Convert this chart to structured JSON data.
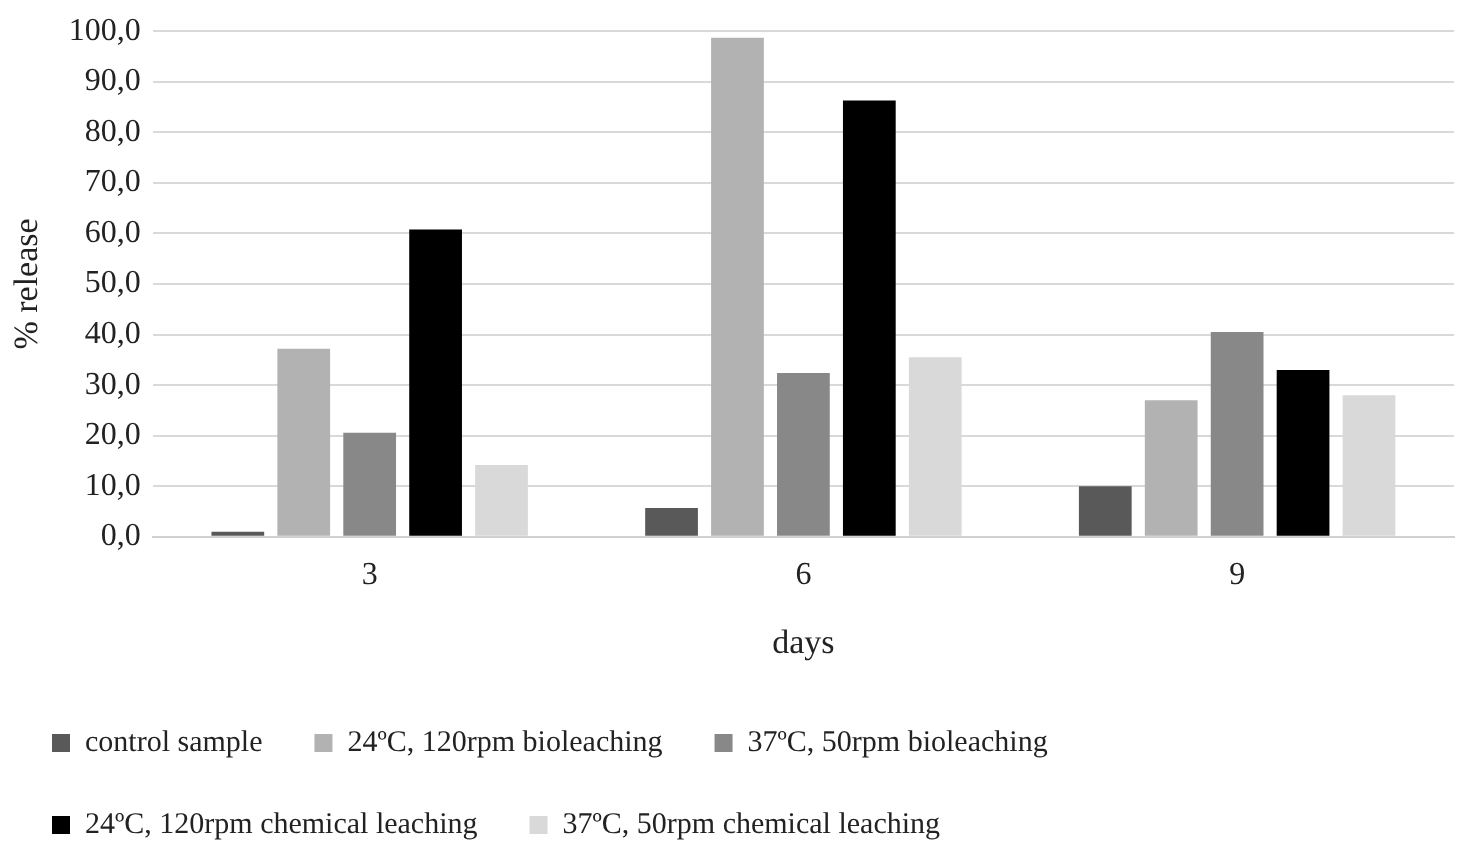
{
  "chart_data": {
    "type": "bar",
    "xlabel": "days",
    "ylabel": "% release",
    "categories": [
      "3",
      "6",
      "9"
    ],
    "series": [
      {
        "name": "control sample",
        "color": "#595959",
        "values": [
          1.0,
          5.7,
          10.0
        ]
      },
      {
        "name": "24ºC, 120rpm bioleaching",
        "color": "#b2b2b2",
        "values": [
          37.2,
          98.7,
          27.0
        ]
      },
      {
        "name": "37ºC, 50rpm bioleaching",
        "color": "#888888",
        "values": [
          20.6,
          32.4,
          40.5
        ]
      },
      {
        "name": "24ºC, 120rpm chemical leaching",
        "color": "#000000",
        "values": [
          60.8,
          86.3,
          33.0
        ]
      },
      {
        "name": "37ºC, 50rpm chemical leaching",
        "color": "#d9d9d9",
        "values": [
          14.2,
          35.5,
          28.0
        ]
      }
    ],
    "ylim": [
      0,
      100
    ],
    "yticks": [
      {
        "value": 0,
        "label": "0,0"
      },
      {
        "value": 10,
        "label": "10,0"
      },
      {
        "value": 20,
        "label": "20,0"
      },
      {
        "value": 30,
        "label": "30,0"
      },
      {
        "value": 40,
        "label": "40,0"
      },
      {
        "value": 50,
        "label": "50,0"
      },
      {
        "value": 60,
        "label": "60,0"
      },
      {
        "value": 70,
        "label": "70,0"
      },
      {
        "value": 80,
        "label": "80,0"
      },
      {
        "value": 90,
        "label": "90,0"
      },
      {
        "value": 100,
        "label": "100,0"
      }
    ],
    "grid": "y",
    "legend": "bottom"
  }
}
